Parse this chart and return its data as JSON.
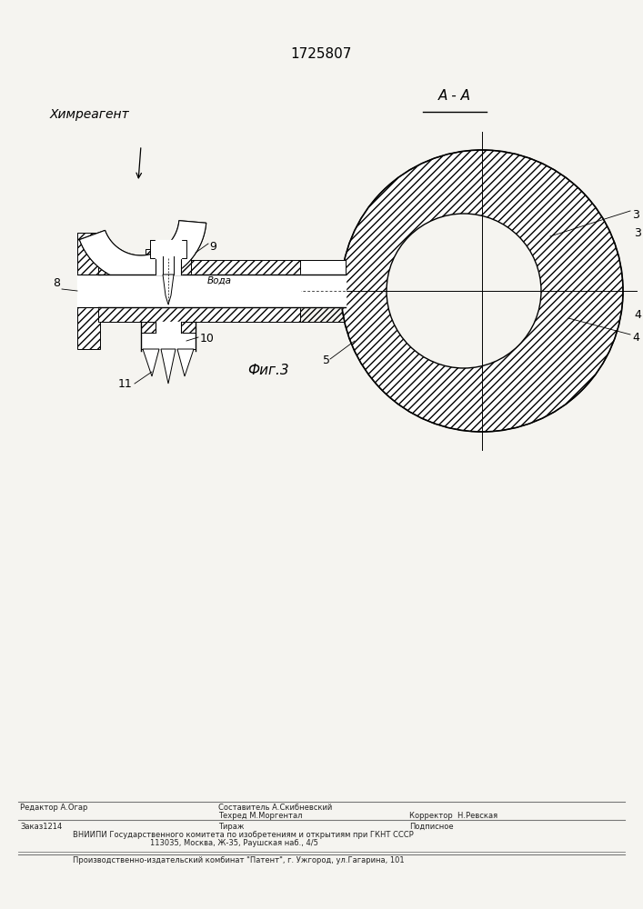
{
  "title": "1725807",
  "fig_label": "Фиг.3",
  "section_label": "А - А",
  "label_himreagent": "Химреагент",
  "label_voda": "Вода",
  "line_color": "#000000",
  "bg_color": "#f5f4f0",
  "footer": {
    "editor": "Редактор А.Огар",
    "compiler": "Составитель А.Скибневский",
    "techred": "Техред М.Моргентал",
    "corrector": "Корректор  Н.Ревская",
    "order": "Заказ1214",
    "tirazh": "Тираж",
    "podpisnoe": "Подписное",
    "vniip1": "ВНИИПИ Государственного комитета по изобретениям и открытиям при ГКНТ СССР",
    "vniip2": "113035, Москва, Ж-35, Раушская наб., 4/5",
    "patent": "Производственно-издательский комбинат \"Патент\", г. Ужгород, ул.Гагарина, 101"
  }
}
